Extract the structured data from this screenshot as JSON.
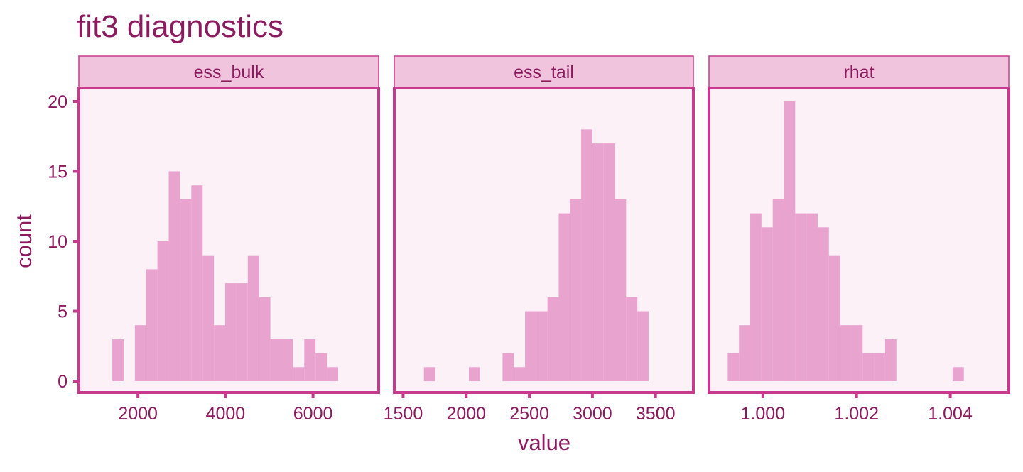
{
  "colors": {
    "text": "#8b1a5e",
    "strip_fill": "#f1c4de",
    "strip_border": "#c73a8e",
    "panel_fill": "#fbf1f7",
    "panel_border": "#c73a8e",
    "bar_fill": "#e8a3cf"
  },
  "chart_data": {
    "type": "histogram",
    "title": "fit3 diagnostics",
    "xlabel": "value",
    "ylabel": "count",
    "y_ticks": [
      0,
      5,
      10,
      15,
      20
    ],
    "ylim": [
      0,
      21
    ],
    "panels": [
      {
        "strip": "ess_bulk",
        "xlim": [
          650,
          7500
        ],
        "x_ticks": [
          2000,
          4000,
          6000
        ],
        "x_tick_labels": [
          "2000",
          "4000",
          "6000"
        ],
        "bin_width": 258,
        "bins": [
          {
            "x0": 1414,
            "count": 3
          },
          {
            "x0": 1930,
            "count": 4
          },
          {
            "x0": 2188,
            "count": 8
          },
          {
            "x0": 2446,
            "count": 10
          },
          {
            "x0": 2704,
            "count": 15
          },
          {
            "x0": 2962,
            "count": 13
          },
          {
            "x0": 3220,
            "count": 14
          },
          {
            "x0": 3478,
            "count": 9
          },
          {
            "x0": 3736,
            "count": 4
          },
          {
            "x0": 3994,
            "count": 7
          },
          {
            "x0": 4252,
            "count": 7
          },
          {
            "x0": 4510,
            "count": 9
          },
          {
            "x0": 4768,
            "count": 6
          },
          {
            "x0": 5026,
            "count": 3
          },
          {
            "x0": 5284,
            "count": 3
          },
          {
            "x0": 5542,
            "count": 1
          },
          {
            "x0": 5800,
            "count": 3
          },
          {
            "x0": 6058,
            "count": 2
          },
          {
            "x0": 6316,
            "count": 1
          }
        ]
      },
      {
        "strip": "ess_tail",
        "xlim": [
          1430,
          3800
        ],
        "x_ticks": [
          1500,
          2000,
          2500,
          3000,
          3500
        ],
        "x_tick_labels": [
          "1500",
          "2000",
          "2500",
          "3000",
          "3500"
        ],
        "bin_width": 89,
        "bins": [
          {
            "x0": 1665,
            "count": 1
          },
          {
            "x0": 2021,
            "count": 1
          },
          {
            "x0": 2288,
            "count": 2
          },
          {
            "x0": 2377,
            "count": 1
          },
          {
            "x0": 2466,
            "count": 5
          },
          {
            "x0": 2555,
            "count": 5
          },
          {
            "x0": 2644,
            "count": 6
          },
          {
            "x0": 2733,
            "count": 12
          },
          {
            "x0": 2822,
            "count": 13
          },
          {
            "x0": 2911,
            "count": 18
          },
          {
            "x0": 3000,
            "count": 17
          },
          {
            "x0": 3089,
            "count": 17
          },
          {
            "x0": 3178,
            "count": 13
          },
          {
            "x0": 3267,
            "count": 6
          },
          {
            "x0": 3356,
            "count": 5
          }
        ]
      },
      {
        "strip": "rhat",
        "xlim": [
          0.99885,
          1.00525
        ],
        "x_ticks": [
          1.0,
          1.002,
          1.004
        ],
        "x_tick_labels": [
          "1.000",
          "1.002",
          "1.004"
        ],
        "bin_width": 0.00024,
        "bins": [
          {
            "x0": 0.99925,
            "count": 2
          },
          {
            "x0": 0.99949,
            "count": 4
          },
          {
            "x0": 0.99973,
            "count": 12
          },
          {
            "x0": 0.99997,
            "count": 11
          },
          {
            "x0": 1.00021,
            "count": 13
          },
          {
            "x0": 1.00045,
            "count": 20
          },
          {
            "x0": 1.00069,
            "count": 12
          },
          {
            "x0": 1.00093,
            "count": 12
          },
          {
            "x0": 1.00117,
            "count": 11
          },
          {
            "x0": 1.00141,
            "count": 9
          },
          {
            "x0": 1.00165,
            "count": 4
          },
          {
            "x0": 1.00189,
            "count": 4
          },
          {
            "x0": 1.00213,
            "count": 2
          },
          {
            "x0": 1.00237,
            "count": 2
          },
          {
            "x0": 1.00261,
            "count": 3
          },
          {
            "x0": 1.00405,
            "count": 1
          }
        ]
      }
    ]
  }
}
